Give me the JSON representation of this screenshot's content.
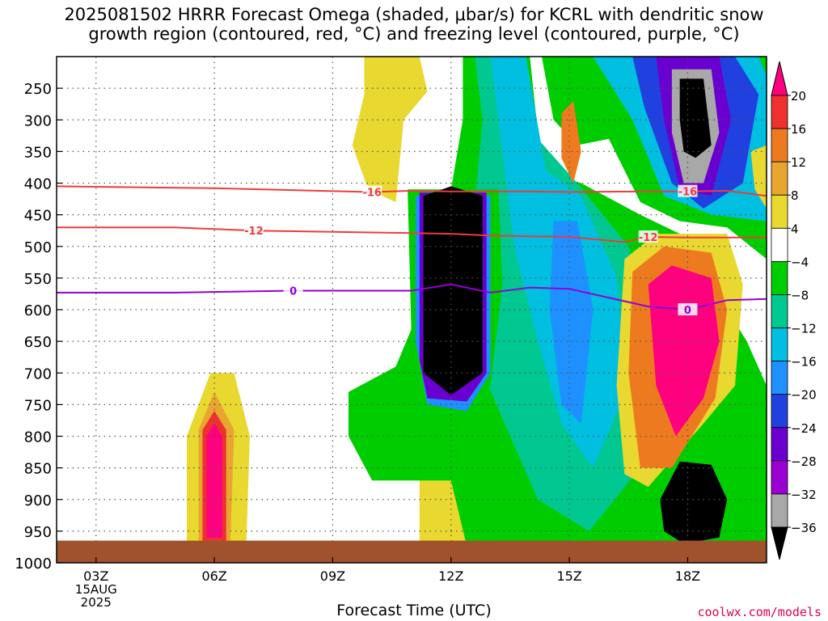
{
  "title": {
    "line1": "2025081502 HRRR Forecast Omega (shaded, μbar/s) for KCRL with dendritic snow",
    "line2": "growth region (contoured, red, °C) and freezing level (contoured, purple, °C)"
  },
  "credit": "coolwx.com/models",
  "colors": {
    "ground": "#a0522d",
    "dendritic_contour": "#ee3b3b",
    "freezing_contour": "#9400d3",
    "grid": "#555555"
  },
  "chart_data": {
    "type": "heatmap",
    "xlabel": "Forecast Time (UTC)",
    "x_ticks": [
      "03Z",
      "06Z",
      "09Z",
      "12Z",
      "15Z",
      "18Z"
    ],
    "x_tick_hours": [
      3,
      6,
      9,
      12,
      15,
      18
    ],
    "x_start_sub": [
      "15AUG",
      "2025"
    ],
    "xlim_hours": [
      2,
      20
    ],
    "y_ticks": [
      250,
      300,
      350,
      400,
      450,
      500,
      550,
      600,
      650,
      700,
      750,
      800,
      850,
      900,
      950,
      1000
    ],
    "ylim_hPa": [
      200,
      1000
    ],
    "ground_top_hPa": 965,
    "colorbar": {
      "labels": [
        "20",
        "16",
        "12",
        "8",
        "4",
        "−4",
        "−8",
        "−12",
        "−16",
        "−20",
        "−24",
        "−28",
        "−32",
        "−36"
      ],
      "colors": [
        "#ff007f",
        "#ee3030",
        "#ee7a20",
        "#e8a530",
        "#e8d830",
        "#ffffff",
        "#00cd00",
        "#00c890",
        "#00bfe0",
        "#1e90ff",
        "#2040e0",
        "#6a00d0",
        "#9b00d3",
        "#a8a8a8",
        "#000000"
      ]
    },
    "contours": [
      {
        "label": "-16",
        "color": "#ee3b3b",
        "points": [
          [
            2,
            405
          ],
          [
            6,
            408
          ],
          [
            10,
            414
          ],
          [
            11,
            412
          ],
          [
            12,
            413
          ],
          [
            14,
            413
          ],
          [
            15,
            414
          ],
          [
            17,
            413
          ],
          [
            18,
            413
          ],
          [
            19,
            412
          ],
          [
            20,
            420
          ]
        ]
      },
      {
        "label": "-12",
        "color": "#ee3b3b",
        "points": [
          [
            2,
            470
          ],
          [
            5,
            470
          ],
          [
            7,
            475
          ],
          [
            10,
            478
          ],
          [
            12,
            480
          ],
          [
            13,
            483
          ],
          [
            15,
            485
          ],
          [
            16.4,
            493
          ],
          [
            17,
            485
          ],
          [
            18,
            486
          ],
          [
            20,
            486
          ]
        ]
      },
      {
        "label": "0",
        "color": "#9400d3",
        "points": [
          [
            2,
            573
          ],
          [
            5,
            573
          ],
          [
            8,
            570
          ],
          [
            11,
            570
          ],
          [
            12,
            560
          ],
          [
            13,
            573
          ],
          [
            14,
            565
          ],
          [
            15,
            567
          ],
          [
            17,
            595
          ],
          [
            18,
            600
          ],
          [
            19,
            585
          ],
          [
            20,
            583
          ]
        ]
      }
    ],
    "shaded_regions": [
      {
        "value": 4,
        "color": "#e8d830",
        "points": [
          [
            11.2,
            1000
          ],
          [
            13.0,
            1000
          ],
          [
            13.0,
            870
          ],
          [
            12.2,
            860
          ],
          [
            11.2,
            870
          ]
        ]
      },
      {
        "value": 4,
        "color": "#e8d830",
        "points": [
          [
            9.8,
            200
          ],
          [
            11.2,
            200
          ],
          [
            11.4,
            255
          ],
          [
            10.8,
            300
          ],
          [
            10.6,
            430
          ],
          [
            9.9,
            410
          ],
          [
            9.5,
            340
          ],
          [
            9.8,
            260
          ]
        ]
      },
      {
        "value": 4,
        "color": "#e8d830",
        "points": [
          [
            5.3,
            990
          ],
          [
            6.8,
            990
          ],
          [
            6.9,
            800
          ],
          [
            6.5,
            700
          ],
          [
            5.9,
            700
          ],
          [
            5.3,
            800
          ]
        ]
      },
      {
        "value": 8,
        "color": "#e8a530",
        "points": [
          [
            5.6,
            980
          ],
          [
            6.4,
            980
          ],
          [
            6.5,
            790
          ],
          [
            6.0,
            730
          ],
          [
            5.6,
            790
          ]
        ]
      },
      {
        "value": 16,
        "color": "#ee3030",
        "points": [
          [
            5.7,
            965
          ],
          [
            6.3,
            965
          ],
          [
            6.3,
            790
          ],
          [
            6.0,
            760
          ],
          [
            5.7,
            790
          ]
        ]
      },
      {
        "value": 20,
        "color": "#ff007f",
        "points": [
          [
            5.8,
            960
          ],
          [
            6.2,
            960
          ],
          [
            6.2,
            800
          ],
          [
            6.0,
            780
          ],
          [
            5.8,
            800
          ]
        ]
      },
      {
        "value": -4,
        "color": "#00cd00",
        "points": [
          [
            12.3,
            200
          ],
          [
            14.0,
            200
          ],
          [
            14.3,
            380
          ],
          [
            15.3,
            400
          ],
          [
            16.8,
            450
          ],
          [
            17.8,
            480
          ],
          [
            19.5,
            650
          ],
          [
            20,
            720
          ],
          [
            20,
            1000
          ],
          [
            12.5,
            1000
          ],
          [
            12.0,
            870
          ],
          [
            10.0,
            870
          ],
          [
            9.4,
            800
          ],
          [
            9.4,
            730
          ],
          [
            10.6,
            690
          ],
          [
            11.2,
            600
          ],
          [
            11.0,
            420
          ],
          [
            12.0,
            410
          ],
          [
            12.3,
            300
          ]
        ]
      },
      {
        "value": -8,
        "color": "#00c890",
        "points": [
          [
            12.6,
            200
          ],
          [
            13.8,
            200
          ],
          [
            14.2,
            330
          ],
          [
            15.2,
            400
          ],
          [
            16.5,
            500
          ],
          [
            17.2,
            700
          ],
          [
            16.8,
            850
          ],
          [
            15.5,
            950
          ],
          [
            14.2,
            900
          ],
          [
            13.5,
            800
          ],
          [
            12.8,
            700
          ],
          [
            12.5,
            500
          ],
          [
            12.8,
            300
          ]
        ]
      },
      {
        "value": -12,
        "color": "#00bfe0",
        "points": [
          [
            13.0,
            200
          ],
          [
            13.9,
            200
          ],
          [
            14.4,
            380
          ],
          [
            15.3,
            420
          ],
          [
            16.2,
            550
          ],
          [
            16.5,
            720
          ],
          [
            15.6,
            850
          ],
          [
            14.8,
            780
          ],
          [
            14.2,
            650
          ],
          [
            13.6,
            500
          ],
          [
            13.3,
            350
          ]
        ]
      },
      {
        "value": -16,
        "color": "#1e90ff",
        "points": [
          [
            14.6,
            460
          ],
          [
            15.2,
            460
          ],
          [
            15.6,
            600
          ],
          [
            15.3,
            780
          ],
          [
            14.8,
            750
          ],
          [
            14.5,
            600
          ]
        ]
      },
      {
        "value": -4,
        "color": "#00cd00",
        "points": [
          [
            14.3,
            200
          ],
          [
            16.3,
            200
          ],
          [
            17.0,
            270
          ],
          [
            18.6,
            200
          ],
          [
            20,
            200
          ],
          [
            20,
            520
          ],
          [
            19.0,
            470
          ],
          [
            17.8,
            460
          ],
          [
            16.8,
            430
          ],
          [
            16.0,
            330
          ],
          [
            15.2,
            340
          ],
          [
            14.6,
            300
          ]
        ]
      },
      {
        "value": -12,
        "color": "#00bfe0",
        "points": [
          [
            15.6,
            200
          ],
          [
            19.8,
            200
          ],
          [
            20,
            230
          ],
          [
            20,
            460
          ],
          [
            18.6,
            450
          ],
          [
            17.4,
            420
          ],
          [
            16.6,
            300
          ]
        ]
      },
      {
        "value": -24,
        "color": "#2040e0",
        "points": [
          [
            16.6,
            200
          ],
          [
            19.2,
            200
          ],
          [
            19.8,
            260
          ],
          [
            19.4,
            400
          ],
          [
            18.4,
            440
          ],
          [
            17.6,
            400
          ],
          [
            16.9,
            280
          ]
        ]
      },
      {
        "value": -28,
        "color": "#6a00d0",
        "points": [
          [
            17.2,
            200
          ],
          [
            18.8,
            200
          ],
          [
            19.1,
            300
          ],
          [
            18.6,
            420
          ],
          [
            17.8,
            410
          ],
          [
            17.4,
            300
          ]
        ]
      },
      {
        "value": -32,
        "color": "#a8a8a8",
        "points": [
          [
            17.6,
            220
          ],
          [
            18.6,
            220
          ],
          [
            18.8,
            320
          ],
          [
            18.4,
            400
          ],
          [
            17.9,
            400
          ],
          [
            17.6,
            320
          ]
        ]
      },
      {
        "value": -36,
        "color": "#000000",
        "points": [
          [
            17.8,
            235
          ],
          [
            18.4,
            235
          ],
          [
            18.6,
            340
          ],
          [
            18.2,
            360
          ],
          [
            17.9,
            350
          ],
          [
            17.8,
            300
          ]
        ]
      },
      {
        "value": -4,
        "color": "#00cd00",
        "points": [
          [
            10.9,
            410
          ],
          [
            13.2,
            410
          ],
          [
            13.3,
            560
          ],
          [
            13.0,
            720
          ],
          [
            12.4,
            770
          ],
          [
            11.3,
            760
          ],
          [
            11.0,
            650
          ]
        ]
      },
      {
        "value": -16,
        "color": "#1e90ff",
        "points": [
          [
            11.1,
            420
          ],
          [
            13.0,
            420
          ],
          [
            13.0,
            700
          ],
          [
            12.4,
            760
          ],
          [
            11.4,
            750
          ],
          [
            11.1,
            650
          ]
        ]
      },
      {
        "value": -28,
        "color": "#6a00d0",
        "points": [
          [
            11.2,
            415
          ],
          [
            12.9,
            415
          ],
          [
            12.9,
            700
          ],
          [
            12.4,
            745
          ],
          [
            11.4,
            740
          ],
          [
            11.2,
            680
          ]
        ]
      },
      {
        "value": -36,
        "color": "#000000",
        "points": [
          [
            11.3,
            420
          ],
          [
            12.0,
            405
          ],
          [
            12.8,
            420
          ],
          [
            12.8,
            700
          ],
          [
            12.0,
            735
          ],
          [
            11.3,
            700
          ]
        ]
      },
      {
        "value": 4,
        "color": "#e8d830",
        "points": [
          [
            16.4,
            520
          ],
          [
            17.2,
            480
          ],
          [
            19.0,
            480
          ],
          [
            19.4,
            560
          ],
          [
            19.2,
            720
          ],
          [
            18.4,
            780
          ],
          [
            17.0,
            880
          ],
          [
            16.4,
            860
          ],
          [
            16.2,
            720
          ]
        ]
      },
      {
        "value": 12,
        "color": "#ee7a20",
        "points": [
          [
            16.6,
            540
          ],
          [
            17.4,
            500
          ],
          [
            18.6,
            510
          ],
          [
            19.0,
            600
          ],
          [
            18.7,
            740
          ],
          [
            17.6,
            850
          ],
          [
            16.8,
            850
          ],
          [
            16.5,
            700
          ]
        ]
      },
      {
        "value": 20,
        "color": "#ff007f",
        "points": [
          [
            17.0,
            560
          ],
          [
            17.6,
            530
          ],
          [
            18.6,
            550
          ],
          [
            18.8,
            650
          ],
          [
            18.4,
            740
          ],
          [
            17.7,
            800
          ],
          [
            17.2,
            720
          ]
        ]
      },
      {
        "value": -36,
        "color": "#000000",
        "points": [
          [
            17.3,
            900
          ],
          [
            17.8,
            840
          ],
          [
            18.6,
            845
          ],
          [
            19.0,
            900
          ],
          [
            18.8,
            960
          ],
          [
            17.9,
            970
          ],
          [
            17.4,
            950
          ]
        ]
      },
      {
        "value": 12,
        "color": "#ee7a20",
        "points": [
          [
            14.8,
            290
          ],
          [
            15.1,
            270
          ],
          [
            15.3,
            350
          ],
          [
            15.1,
            400
          ],
          [
            14.8,
            360
          ]
        ]
      },
      {
        "value": 4,
        "color": "#e8d830",
        "points": [
          [
            19.6,
            350
          ],
          [
            20,
            340
          ],
          [
            20,
            440
          ],
          [
            19.7,
            410
          ]
        ]
      }
    ]
  }
}
